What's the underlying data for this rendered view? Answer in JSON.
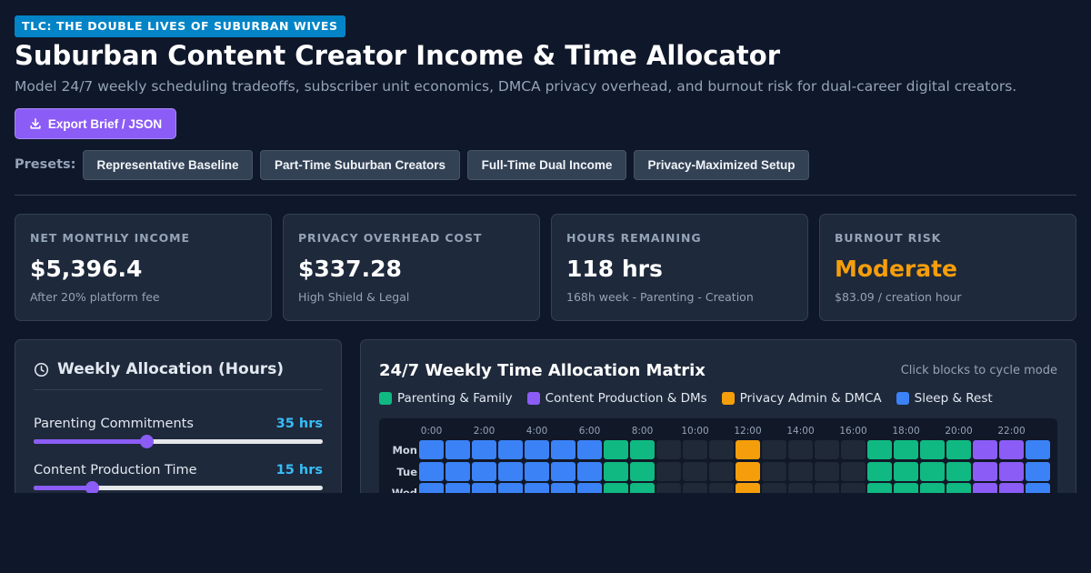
{
  "header": {
    "badge": "TLC: THE DOUBLE LIVES OF SUBURBAN WIVES",
    "title": "Suburban Content Creator Income & Time Allocator",
    "subtitle": "Model 24/7 weekly scheduling tradeoffs, subscriber unit economics, DMCA privacy overhead, and burnout risk for dual-career digital creators.",
    "export_label": "Export Brief / JSON"
  },
  "presets": {
    "label": "Presets:",
    "items": [
      "Representative Baseline",
      "Part-Time Suburban Creators",
      "Full-Time Dual Income",
      "Privacy-Maximized Setup"
    ]
  },
  "kpis": [
    {
      "label": "NET MONTHLY INCOME",
      "value": "$5,396.4",
      "sub": "After 20% platform fee",
      "color": "#ffffff"
    },
    {
      "label": "PRIVACY OVERHEAD COST",
      "value": "$337.28",
      "sub": "High Shield & Legal",
      "color": "#ffffff"
    },
    {
      "label": "HOURS REMAINING",
      "value": "118 hrs",
      "sub": "168h week - Parenting - Creation",
      "color": "#ffffff"
    },
    {
      "label": "BURNOUT RISK",
      "value": "Moderate",
      "sub": "$83.09 / creation hour",
      "color": "#f59e0b"
    }
  ],
  "allocation": {
    "title": "Weekly Allocation (Hours)",
    "sliders": [
      {
        "label": "Parenting Commitments",
        "value_text": "35 hrs",
        "fraction": 0.39
      },
      {
        "label": "Content Production Time",
        "value_text": "15 hrs",
        "fraction": 0.2
      }
    ]
  },
  "matrix": {
    "title": "24/7 Weekly Time Allocation Matrix",
    "hint": "Click blocks to cycle mode",
    "legend": [
      {
        "label": "Parenting & Family",
        "color": "#10b981"
      },
      {
        "label": "Content Production & DMs",
        "color": "#8b5cf6"
      },
      {
        "label": "Privacy Admin & DMCA",
        "color": "#f59e0b"
      },
      {
        "label": "Sleep & Rest",
        "color": "#3b82f6"
      }
    ],
    "hour_labels": [
      "0:00",
      "2:00",
      "4:00",
      "6:00",
      "8:00",
      "10:00",
      "12:00",
      "14:00",
      "16:00",
      "18:00",
      "20:00",
      "22:00"
    ],
    "days": [
      "Mon",
      "Tue",
      "Wed"
    ],
    "mode_colors": {
      "S": "#3b82f6",
      "P": "#10b981",
      "C": "#8b5cf6",
      "A": "#f59e0b",
      "E": "#1f2937"
    },
    "rows": [
      "SSSSSSSPPEEEAEEEEPPPPCCS",
      "SSSSSSSPPEEEAEEEEPPPPCCS",
      "SSSSSSSPPEEEAEEEEPPPPCCS"
    ]
  }
}
